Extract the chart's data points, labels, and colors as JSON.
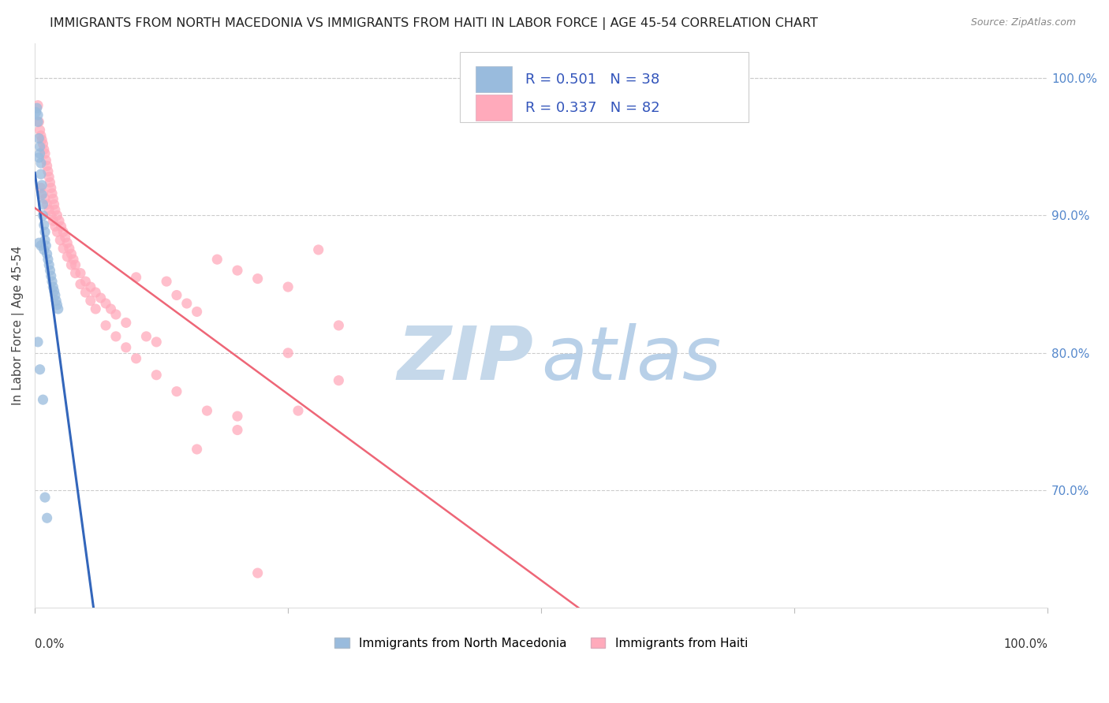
{
  "title": "IMMIGRANTS FROM NORTH MACEDONIA VS IMMIGRANTS FROM HAITI IN LABOR FORCE | AGE 45-54 CORRELATION CHART",
  "source": "Source: ZipAtlas.com",
  "ylabel": "In Labor Force | Age 45-54",
  "xlim": [
    0.0,
    1.0
  ],
  "ylim": [
    0.615,
    1.025
  ],
  "yticks": [
    0.7,
    0.8,
    0.9,
    1.0
  ],
  "ytick_labels": [
    "70.0%",
    "80.0%",
    "90.0%",
    "100.0%"
  ],
  "legend1_label": "Immigrants from North Macedonia",
  "legend2_label": "Immigrants from Haiti",
  "R1": 0.501,
  "N1": 38,
  "R2": 0.337,
  "N2": 82,
  "color_blue": "#99BBDD",
  "color_pink": "#FFAABB",
  "color_blue_line": "#3366BB",
  "color_pink_line": "#EE6677",
  "color_blue_text": "#3355BB",
  "color_right_axis": "#5588CC",
  "blue_x": [
    0.001,
    0.002,
    0.003,
    0.003,
    0.004,
    0.004,
    0.005,
    0.005,
    0.006,
    0.006,
    0.007,
    0.007,
    0.008,
    0.008,
    0.009,
    0.01,
    0.01,
    0.011,
    0.012,
    0.013,
    0.014,
    0.015,
    0.016,
    0.017,
    0.018,
    0.019,
    0.02,
    0.021,
    0.022,
    0.023,
    0.003,
    0.005,
    0.008,
    0.01,
    0.012,
    0.004,
    0.006,
    0.009
  ],
  "blue_y": [
    0.975,
    0.978,
    0.968,
    0.973,
    0.942,
    0.956,
    0.95,
    0.945,
    0.938,
    0.93,
    0.922,
    0.915,
    0.908,
    0.9,
    0.893,
    0.888,
    0.882,
    0.878,
    0.872,
    0.868,
    0.864,
    0.86,
    0.856,
    0.852,
    0.848,
    0.845,
    0.842,
    0.838,
    0.835,
    0.832,
    0.808,
    0.788,
    0.766,
    0.695,
    0.68,
    0.88,
    0.878,
    0.875
  ],
  "pink_x": [
    0.003,
    0.004,
    0.005,
    0.006,
    0.007,
    0.008,
    0.009,
    0.01,
    0.011,
    0.012,
    0.013,
    0.014,
    0.015,
    0.016,
    0.017,
    0.018,
    0.019,
    0.02,
    0.022,
    0.024,
    0.026,
    0.028,
    0.03,
    0.032,
    0.034,
    0.036,
    0.038,
    0.04,
    0.045,
    0.05,
    0.055,
    0.06,
    0.065,
    0.07,
    0.075,
    0.08,
    0.09,
    0.1,
    0.11,
    0.12,
    0.13,
    0.14,
    0.15,
    0.16,
    0.18,
    0.2,
    0.22,
    0.25,
    0.28,
    0.3,
    0.006,
    0.008,
    0.01,
    0.012,
    0.014,
    0.016,
    0.018,
    0.02,
    0.022,
    0.025,
    0.028,
    0.032,
    0.036,
    0.04,
    0.045,
    0.05,
    0.055,
    0.06,
    0.07,
    0.08,
    0.09,
    0.1,
    0.12,
    0.14,
    0.17,
    0.2,
    0.25,
    0.3,
    0.16,
    0.2,
    0.22,
    0.26
  ],
  "pink_y": [
    0.98,
    0.968,
    0.962,
    0.958,
    0.955,
    0.952,
    0.948,
    0.945,
    0.94,
    0.936,
    0.932,
    0.928,
    0.924,
    0.92,
    0.916,
    0.912,
    0.908,
    0.904,
    0.9,
    0.896,
    0.892,
    0.888,
    0.884,
    0.88,
    0.876,
    0.872,
    0.868,
    0.864,
    0.858,
    0.852,
    0.848,
    0.844,
    0.84,
    0.836,
    0.832,
    0.828,
    0.822,
    0.855,
    0.812,
    0.808,
    0.852,
    0.842,
    0.836,
    0.83,
    0.868,
    0.86,
    0.854,
    0.848,
    0.875,
    0.82,
    0.92,
    0.916,
    0.912,
    0.908,
    0.904,
    0.9,
    0.896,
    0.892,
    0.888,
    0.882,
    0.876,
    0.87,
    0.864,
    0.858,
    0.85,
    0.844,
    0.838,
    0.832,
    0.82,
    0.812,
    0.804,
    0.796,
    0.784,
    0.772,
    0.758,
    0.744,
    0.8,
    0.78,
    0.73,
    0.754,
    0.64,
    0.758
  ]
}
